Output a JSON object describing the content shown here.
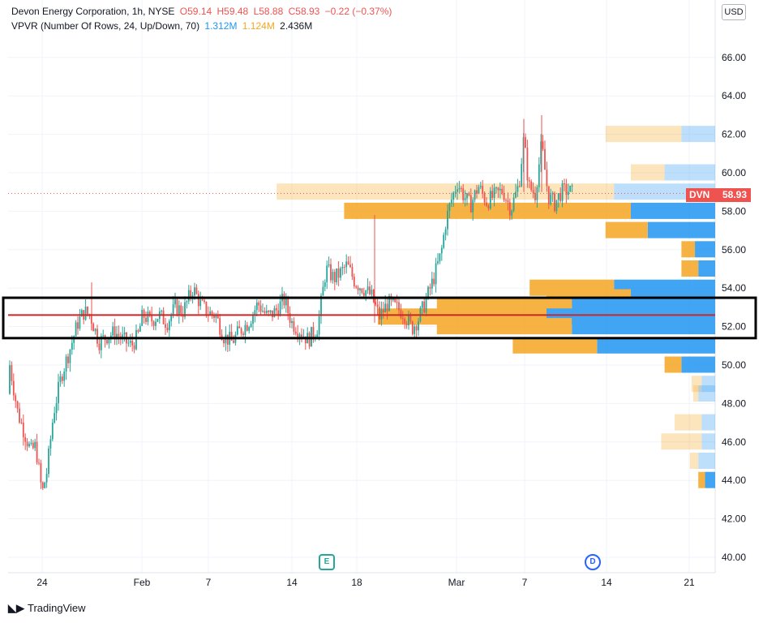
{
  "legend": {
    "symbol": "Devon Energy Corporation, 1h, NYSE",
    "open": "O59.14",
    "high": "H59.48",
    "low": "L58.88",
    "close": "C58.93",
    "change": "−0.22 (−0.37%)",
    "indicator": "VPVR (Number Of Rows, 24, Up/Down, 70)",
    "vol_up": "1.312M",
    "vol_down": "1.124M",
    "vol_total": "2.436M"
  },
  "currency": "USD",
  "price_tag": {
    "symbol": "DVN",
    "value": "58.93"
  },
  "events": {
    "earnings": "E",
    "dividend": "D"
  },
  "branding": "TradingView",
  "colors": {
    "up": "#26a69a",
    "down": "#ef5350",
    "vpvr_up": "#2196f3",
    "vpvr_down": "#f5a623",
    "annotation_line": "#c62828"
  },
  "chart_data": {
    "type": "candlestick",
    "x_ticks": [
      "24",
      "Feb",
      "7",
      "14",
      "18",
      "Mar",
      "7",
      "14",
      "21"
    ],
    "y_ticks": [
      "40.00",
      "42.00",
      "44.00",
      "46.00",
      "48.00",
      "50.00",
      "52.00",
      "54.00",
      "56.00",
      "58.00",
      "60.00",
      "62.00",
      "64.00",
      "66.00"
    ],
    "ylim": [
      39.5,
      67
    ],
    "last_price": 58.93,
    "annotation_level": 52.6,
    "annotation_box": [
      51.4,
      53.5
    ],
    "price_path": [
      [
        0,
        48.5
      ],
      [
        10,
        50.5
      ],
      [
        22,
        47.5
      ],
      [
        30,
        46.5
      ],
      [
        38,
        45.5
      ],
      [
        44,
        45.8
      ],
      [
        52,
        43.3
      ],
      [
        58,
        44.5
      ],
      [
        66,
        47.5
      ],
      [
        76,
        49.5
      ],
      [
        86,
        50.8
      ],
      [
        96,
        52.2
      ],
      [
        104,
        52.8
      ],
      [
        112,
        52.5
      ],
      [
        122,
        51.2
      ],
      [
        132,
        51.5
      ],
      [
        142,
        51.7
      ],
      [
        152,
        51.3
      ],
      [
        162,
        51.0
      ],
      [
        170,
        51.5
      ],
      [
        176,
        52.6
      ],
      [
        186,
        52.3
      ],
      [
        196,
        52.6
      ],
      [
        206,
        52.2
      ],
      [
        216,
        53.0
      ],
      [
        226,
        52.8
      ],
      [
        238,
        54.0
      ],
      [
        248,
        53.1
      ],
      [
        258,
        52.7
      ],
      [
        266,
        52.6
      ],
      [
        276,
        51.5
      ],
      [
        286,
        51.2
      ],
      [
        296,
        51.8
      ],
      [
        306,
        52.2
      ],
      [
        318,
        53.2
      ],
      [
        330,
        52.5
      ],
      [
        340,
        52.8
      ],
      [
        350,
        53.4
      ],
      [
        360,
        52.2
      ],
      [
        370,
        51.8
      ],
      [
        380,
        51.3
      ],
      [
        392,
        52.0
      ],
      [
        402,
        55.0
      ],
      [
        412,
        54.5
      ],
      [
        420,
        54.8
      ],
      [
        428,
        55.2
      ],
      [
        438,
        54.3
      ],
      [
        448,
        54.0
      ],
      [
        458,
        53.6
      ],
      [
        468,
        52.5
      ],
      [
        478,
        53.2
      ],
      [
        488,
        53.0
      ],
      [
        498,
        52.7
      ],
      [
        508,
        51.9
      ],
      [
        516,
        52.4
      ],
      [
        524,
        53.2
      ],
      [
        534,
        54.4
      ],
      [
        544,
        55.8
      ],
      [
        550,
        57.5
      ],
      [
        556,
        58.5
      ],
      [
        564,
        59.5
      ],
      [
        572,
        58.8
      ],
      [
        580,
        58.3
      ],
      [
        590,
        59.3
      ],
      [
        600,
        58.5
      ],
      [
        610,
        58.8
      ],
      [
        620,
        59.1
      ],
      [
        630,
        58.1
      ],
      [
        640,
        59.4
      ],
      [
        646,
        61.8
      ],
      [
        652,
        59.3
      ],
      [
        660,
        58.9
      ],
      [
        668,
        61.5
      ],
      [
        676,
        58.8
      ],
      [
        684,
        58.4
      ],
      [
        692,
        59.0
      ],
      [
        700,
        59.1
      ],
      [
        706,
        58.93
      ]
    ],
    "volume_profile": [
      {
        "price": 62.0,
        "up": 0.02,
        "down": 0.045
      },
      {
        "price": 60.0,
        "up": 0.03,
        "down": 0.02
      },
      {
        "price": 59.0,
        "up": 0.06,
        "down": 0.2
      },
      {
        "price": 58.0,
        "up": 0.05,
        "down": 0.17
      },
      {
        "price": 57.0,
        "up": 0.04,
        "down": 0.025
      },
      {
        "price": 56.0,
        "up": 0.012,
        "down": 0.008
      },
      {
        "price": 55.0,
        "up": 0.01,
        "down": 0.01
      },
      {
        "price": 54.0,
        "up": 0.06,
        "down": 0.05
      },
      {
        "price": 53.5,
        "up": 0.05,
        "down": 0.05
      },
      {
        "price": 53.0,
        "up": 0.085,
        "down": 0.08
      },
      {
        "price": 52.5,
        "up": 0.1,
        "down": 0.1
      },
      {
        "price": 52.0,
        "up": 0.085,
        "down": 0.08
      },
      {
        "price": 51.0,
        "up": 0.07,
        "down": 0.05
      },
      {
        "price": 50.0,
        "up": 0.02,
        "down": 0.01
      },
      {
        "price": 49.0,
        "up": 0.008,
        "down": 0.006
      },
      {
        "price": 48.5,
        "up": 0.01,
        "down": 0.003
      },
      {
        "price": 47.0,
        "up": 0.008,
        "down": 0.016
      },
      {
        "price": 46.0,
        "up": 0.008,
        "down": 0.024
      },
      {
        "price": 45.0,
        "up": 0.01,
        "down": 0.005
      },
      {
        "price": 44.0,
        "up": 0.006,
        "down": 0.004
      }
    ]
  }
}
